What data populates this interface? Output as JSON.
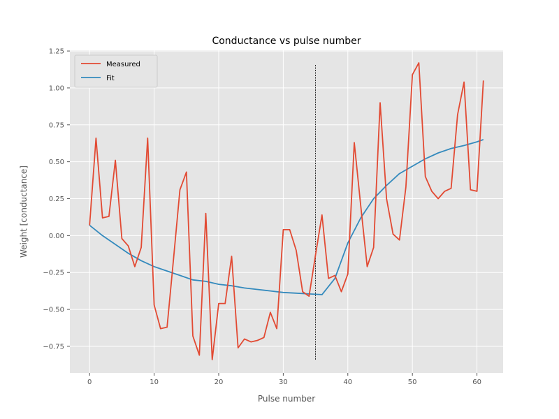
{
  "chart_data": {
    "type": "line",
    "title": "Conductance vs pulse number",
    "xlabel": "Pulse number",
    "ylabel": "Weight [conductance]",
    "xlim": [
      -3.05,
      64.05
    ],
    "ylim": [
      -0.93,
      1.255
    ],
    "xticks": [
      0,
      10,
      20,
      30,
      40,
      50,
      60
    ],
    "yticks": [
      -0.75,
      -0.5,
      -0.25,
      0.0,
      0.25,
      0.5,
      0.75,
      1.0,
      1.25
    ],
    "ytick_labels": [
      "−0.75",
      "−0.50",
      "−0.25",
      "0.00",
      "0.25",
      "0.50",
      "0.75",
      "1.00",
      "1.25"
    ],
    "grid": true,
    "legend_position": "top-left",
    "vline": {
      "x": 35,
      "y_from": -0.84,
      "y_to": 1.16
    },
    "series": [
      {
        "name": "Measured",
        "color": "#E24A33",
        "x": [
          0,
          1,
          2,
          3,
          4,
          5,
          6,
          7,
          8,
          9,
          10,
          11,
          12,
          13,
          14,
          15,
          16,
          17,
          18,
          19,
          20,
          21,
          22,
          23,
          24,
          25,
          26,
          27,
          28,
          29,
          30,
          31,
          32,
          33,
          34,
          35,
          36,
          37,
          38,
          39,
          40,
          41,
          42,
          43,
          44,
          45,
          46,
          47,
          48,
          49,
          50,
          51,
          52,
          53,
          54,
          55,
          56,
          57,
          58,
          59,
          60,
          61
        ],
        "values": [
          0.07,
          0.66,
          0.12,
          0.13,
          0.51,
          -0.02,
          -0.07,
          -0.21,
          -0.08,
          0.66,
          -0.47,
          -0.63,
          -0.62,
          -0.16,
          0.31,
          0.43,
          -0.68,
          -0.81,
          0.15,
          -0.84,
          -0.46,
          -0.46,
          -0.14,
          -0.76,
          -0.7,
          -0.72,
          -0.71,
          -0.69,
          -0.52,
          -0.63,
          0.04,
          0.04,
          -0.1,
          -0.38,
          -0.41,
          -0.13,
          0.14,
          -0.29,
          -0.27,
          -0.38,
          -0.26,
          0.63,
          0.2,
          -0.21,
          -0.08,
          0.9,
          0.25,
          0.01,
          -0.03,
          0.33,
          1.09,
          1.17,
          0.4,
          0.3,
          0.25,
          0.3,
          0.32,
          0.82,
          1.04,
          0.31,
          0.3,
          1.05
        ]
      },
      {
        "name": "Fit",
        "color": "#348ABD",
        "x": [
          0,
          2,
          4,
          6,
          8,
          10,
          12,
          14,
          16,
          18,
          20,
          22,
          24,
          26,
          28,
          30,
          32,
          34,
          36,
          38,
          40,
          42,
          44,
          46,
          48,
          50,
          52,
          54,
          56,
          58,
          60,
          61
        ],
        "values": [
          0.07,
          0.0,
          -0.06,
          -0.12,
          -0.17,
          -0.21,
          -0.24,
          -0.27,
          -0.3,
          -0.31,
          -0.33,
          -0.34,
          -0.355,
          -0.365,
          -0.375,
          -0.385,
          -0.39,
          -0.395,
          -0.4,
          -0.29,
          -0.05,
          0.12,
          0.25,
          0.34,
          0.42,
          0.47,
          0.52,
          0.56,
          0.59,
          0.61,
          0.635,
          0.65
        ]
      }
    ]
  }
}
